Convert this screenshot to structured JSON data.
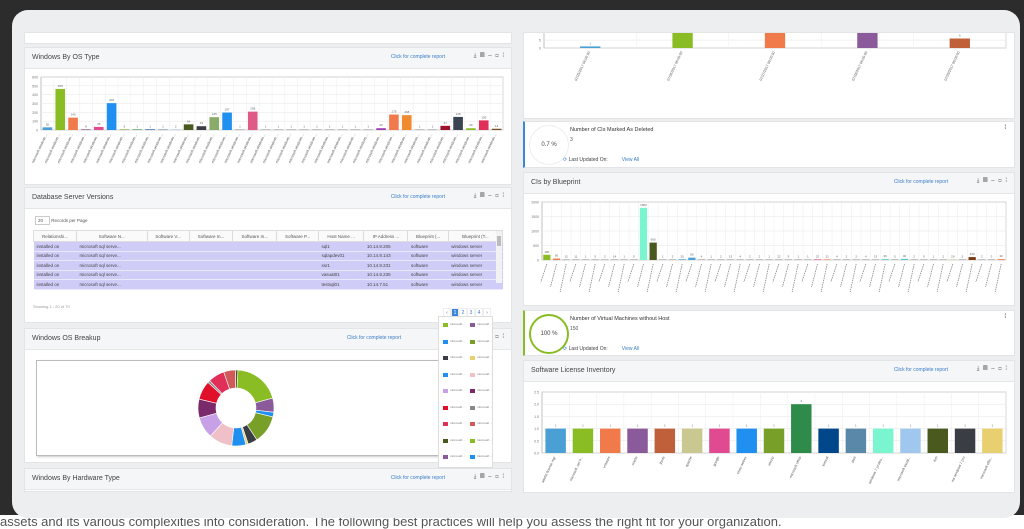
{
  "background_text": "assets and its various complexities into consideration. The following best practices will help you assess the right fit for your organization.",
  "common": {
    "report_link": "Click for complete report",
    "tools": "⤓ ▤ – ◻ ⁞",
    "last_updated": "Last Updated On:",
    "view_all": "View All"
  },
  "panels": {
    "os_type": {
      "title": "Windows By OS Type"
    },
    "db": {
      "title": "Database Server Versions",
      "page_size": "20",
      "records_label": "Records per Page",
      "columns": [
        "Relationshi...",
        "Software N...",
        "Software V...",
        "Software In...",
        "Software In...",
        "Software P...",
        "Host Name ...",
        "IP Address ...",
        "Blueprint (...",
        "Blueprint (T..."
      ],
      "rows": [
        [
          "installed on",
          "microsoft sql serve...",
          "",
          "",
          "",
          "",
          "sql1",
          "10.14.8.205",
          "software",
          "windows server"
        ],
        [
          "installed on",
          "microsoft sql serve...",
          "",
          "",
          "",
          "",
          "sqlapdev01",
          "10.14.8.143",
          "software",
          "windows server"
        ],
        [
          "installed on",
          "microsoft sql serve...",
          "",
          "",
          "",
          "",
          "ssr1",
          "10.14.8.231",
          "software",
          "windows server"
        ],
        [
          "installed on",
          "microsoft sql serve...",
          "",
          "",
          "",
          "",
          "vasuat01",
          "10.14.8.235",
          "software",
          "windows server"
        ],
        [
          "installed on",
          "microsoft sql serve...",
          "",
          "",
          "",
          "",
          "testsql01",
          "10.14.7.51",
          "software",
          "windows server"
        ]
      ],
      "showing": "Showing 1 - 20 of 70",
      "pages": [
        "‹",
        "1",
        "2",
        "3",
        "4",
        "›"
      ],
      "current_page": "1"
    },
    "os_breakup": {
      "title": "Windows OS Breakup"
    },
    "hw": {
      "title": "Windows By Hardware Type"
    },
    "blueprint": {
      "title": "CIs by Blueprint"
    },
    "license": {
      "title": "Software License Inventory"
    },
    "kpi_deleted": {
      "percent": "0.7 %",
      "title": "Number of CIs Marked As Deleted",
      "value": "3",
      "accent": "#3a87d6"
    },
    "kpi_vm": {
      "percent": "100 %",
      "title": "Number of Virtual Machines without Host",
      "value": "150",
      "accent": "#8abd24"
    }
  },
  "chart_data": [
    {
      "id": "trend",
      "type": "bar",
      "ylim": [
        0,
        12
      ],
      "yticks": [
        0,
        5,
        10
      ],
      "categories": [
        "07/25/2017 06:00:00",
        "07/26/2017 06:00:00",
        "07/27/2017 06:00:00",
        "07/28/2017 06:00:00",
        "07/29/2017 06:00:00"
      ],
      "values": [
        1,
        12,
        12,
        11,
        6
      ],
      "data_labels": [
        "1",
        "",
        "",
        "",
        "6"
      ],
      "colors": [
        "#4a9fd4",
        "#8abd24",
        "#f07a4a",
        "#8a5a9a",
        "#c0603a"
      ]
    },
    {
      "id": "os_type",
      "type": "bar",
      "ylim": [
        0,
        600
      ],
      "yticks": [
        0,
        100,
        200,
        300,
        400,
        500,
        600
      ],
      "categories_label": "microsoft windows ...",
      "values": [
        30,
        465,
        140,
        8,
        35,
        304,
        5,
        1,
        1,
        1,
        2,
        64,
        43,
        145,
        197,
        1,
        208,
        1,
        1,
        1,
        1,
        1,
        1,
        1,
        1,
        1,
        20,
        175,
        168,
        1,
        1,
        47,
        148,
        20,
        109,
        14
      ],
      "colors": [
        "#4a9fd4",
        "#8abd24",
        "#f07a4a",
        "#8a5a9a",
        "#e04a90",
        "#2090f0",
        "#78a028",
        "#2e8b4a",
        "#00468a",
        "#5a88a8",
        "#a0c8ee",
        "#4a5a1e",
        "#3a3e44",
        "#8aab6a",
        "#2090f0",
        "#999",
        "#e05a88",
        "#999",
        "#999",
        "#999",
        "#999",
        "#999",
        "#999",
        "#999",
        "#999",
        "#999",
        "#9a3ab0",
        "#f07a4a",
        "#f08a30",
        "#999",
        "#999",
        "#a0102a",
        "#3a4450",
        "#8abd24",
        "#e0305a",
        "#7a4a20"
      ]
    },
    {
      "id": "blueprint",
      "type": "bar",
      "ylim": [
        0,
        2000
      ],
      "yticks": [
        0,
        500,
        1000,
        1500,
        2000
      ],
      "values": [
        180,
        50,
        12,
        11,
        1,
        5,
        2,
        14,
        1,
        5,
        1800,
        600,
        1,
        2,
        25,
        80,
        4,
        1,
        2,
        13,
        4,
        2,
        2,
        1,
        22,
        5,
        1,
        1,
        22,
        21,
        4,
        2,
        2,
        4,
        13,
        30,
        5,
        40,
        2,
        5,
        1,
        2,
        20,
        5,
        100,
        2,
        3,
        30
      ],
      "colors": [
        "#8abd24",
        "#f07a4a",
        "#999",
        "#999",
        "#999",
        "#999",
        "#999",
        "#999",
        "#999",
        "#999",
        "#7af5d0",
        "#4a5a1e",
        "#999",
        "#999",
        "#4a9fd4",
        "#4a9fd4",
        "#999",
        "#999",
        "#999",
        "#999",
        "#999",
        "#999",
        "#999",
        "#999",
        "#999",
        "#999",
        "#999",
        "#999",
        "#e04a90",
        "#f07a4a",
        "#999",
        "#999",
        "#999",
        "#999",
        "#999",
        "#5ac8c8",
        "#999",
        "#5ac8c8",
        "#999",
        "#999",
        "#999",
        "#999",
        "#c8c890",
        "#999",
        "#7a3a10",
        "#999",
        "#999",
        "#f07a4a"
      ]
    },
    {
      "id": "license",
      "type": "bar",
      "ylim": [
        0,
        2.5
      ],
      "yticks": [
        "0.0",
        "0.5",
        "1.0",
        "1.5",
        "2.0",
        "2.5"
      ],
      "categories": [
        "adobe license mgr",
        "microsoft .net fr...",
        "vmware",
        "oracle",
        "jboss",
        "apache",
        "google",
        "cisco webex",
        "winzip",
        "microsoft office",
        "tomcat",
        "java",
        "windows 7 profes...",
        "microsoft visual...",
        "ibm",
        "ms windows 7 pro",
        "microsoft offic..."
      ],
      "values": [
        1,
        1,
        1,
        1,
        1,
        1,
        1,
        1,
        1,
        2,
        1,
        1,
        1,
        1,
        1,
        1,
        1
      ],
      "colors": [
        "#4a9fd4",
        "#8abd24",
        "#f07a4a",
        "#8a5a9a",
        "#c0603a",
        "#c8c890",
        "#e04a90",
        "#2090f0",
        "#78a028",
        "#2e8b4a",
        "#00468a",
        "#5a88a8",
        "#7af5d0",
        "#a0c8ee",
        "#4a5a1e",
        "#3a3e44",
        "#e8d070"
      ]
    },
    {
      "id": "os_breakup",
      "type": "pie",
      "donut": true,
      "values": [
        20,
        6,
        2,
        12,
        4,
        1,
        6,
        10,
        9,
        8,
        8,
        1,
        7,
        5,
        1
      ],
      "colors": [
        "#8abd24",
        "#8a5a9a",
        "#2090f0",
        "#78a028",
        "#3a3e44",
        "#e8d070",
        "#2090f0",
        "#f0c0c8",
        "#c8a0e8",
        "#7a2a6a",
        "#e0102a",
        "#888",
        "#e0305a",
        "#d05a5a",
        "#4a5a1e"
      ],
      "legend_label": "microsoft ..."
    }
  ]
}
